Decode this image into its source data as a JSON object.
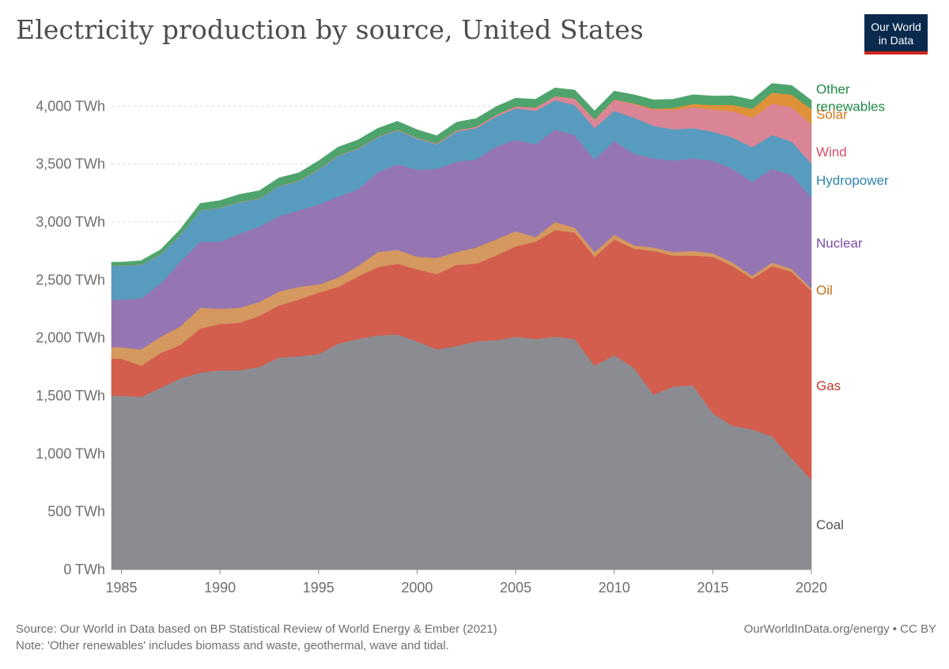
{
  "header": {
    "title": "Electricity production by source, United States",
    "logo_line1": "Our World",
    "logo_line2": "in Data"
  },
  "footer": {
    "source": "Source: Our World in Data based on BP Statistical Review of World Energy & Ember (2021)",
    "note": "Note: 'Other renewables' includes biomass and waste, geothermal, wave and tidal.",
    "credit": "OurWorldInData.org/energy • CC BY"
  },
  "colors": {
    "coal": "#8b8c91",
    "gas": "#d45e4e",
    "oil": "#d5985e",
    "nuclear": "#9676b2",
    "hydropower": "#579cbe",
    "wind": "#d98595",
    "solar": "#df9138",
    "other_renewables": "#4fa46d",
    "logo_bg": "#0a2a4d",
    "logo_bar": "#ce261e"
  },
  "chart_data": {
    "type": "area",
    "stacked": true,
    "title": "Electricity production by source, United States",
    "ylim": [
      0,
      4200
    ],
    "y_ticks": [
      0,
      500,
      1000,
      1500,
      2000,
      2500,
      3000,
      3500,
      4000
    ],
    "y_tick_labels": [
      "0 TWh",
      "500 TWh",
      "1,000 TWh",
      "1,500 TWh",
      "2,000 TWh",
      "2,500 TWh",
      "3,000 TWh",
      "3,500 TWh",
      "4,000 TWh"
    ],
    "x_ticks": [
      1985,
      1990,
      1995,
      2000,
      2005,
      2010,
      2015,
      2020
    ],
    "x_tick_labels": [
      "1985",
      "1990",
      "1995",
      "2000",
      "2005",
      "2010",
      "2015",
      "2020"
    ],
    "grid": true,
    "legend": "right, inline labels",
    "x": [
      1985,
      1986,
      1987,
      1988,
      1989,
      1990,
      1991,
      1992,
      1993,
      1994,
      1995,
      1996,
      1997,
      1998,
      1999,
      2000,
      2001,
      2002,
      2003,
      2004,
      2005,
      2006,
      2007,
      2008,
      2009,
      2010,
      2011,
      2012,
      2013,
      2014,
      2015,
      2016,
      2017,
      2018,
      2019,
      2020
    ],
    "series": [
      {
        "name": "Coal",
        "key": "coal",
        "values": [
          1500,
          1490,
          1570,
          1650,
          1700,
          1720,
          1720,
          1750,
          1830,
          1840,
          1860,
          1950,
          1990,
          2020,
          2030,
          1970,
          1900,
          1930,
          1970,
          1980,
          2010,
          1990,
          2010,
          1990,
          1760,
          1850,
          1740,
          1510,
          1580,
          1590,
          1350,
          1240,
          1210,
          1150,
          960,
          775
        ]
      },
      {
        "name": "Gas",
        "key": "gas",
        "values": [
          320,
          270,
          300,
          290,
          380,
          400,
          410,
          440,
          450,
          490,
          530,
          490,
          540,
          590,
          610,
          620,
          650,
          700,
          670,
          730,
          780,
          840,
          920,
          920,
          940,
          1000,
          1030,
          1240,
          1130,
          1120,
          1350,
          1380,
          1300,
          1470,
          1610,
          1630
        ]
      },
      {
        "name": "Oil",
        "key": "oil",
        "values": [
          100,
          140,
          140,
          160,
          180,
          130,
          130,
          120,
          120,
          110,
          70,
          80,
          90,
          130,
          120,
          110,
          140,
          110,
          140,
          140,
          130,
          40,
          70,
          40,
          40,
          40,
          30,
          30,
          30,
          40,
          30,
          30,
          25,
          30,
          25,
          20
        ]
      },
      {
        "name": "Nuclear",
        "key": "nuclear",
        "values": [
          410,
          440,
          460,
          560,
          570,
          580,
          640,
          650,
          650,
          660,
          690,
          700,
          660,
          690,
          740,
          750,
          770,
          780,
          760,
          800,
          790,
          800,
          800,
          800,
          800,
          810,
          790,
          770,
          790,
          800,
          800,
          810,
          810,
          810,
          810,
          790
        ]
      },
      {
        "name": "Hydropower",
        "key": "hydropower",
        "values": [
          290,
          290,
          250,
          230,
          270,
          290,
          270,
          240,
          260,
          250,
          300,
          350,
          350,
          300,
          290,
          270,
          210,
          260,
          270,
          260,
          270,
          290,
          250,
          260,
          270,
          260,
          310,
          280,
          270,
          260,
          250,
          270,
          300,
          290,
          290,
          290
        ]
      },
      {
        "name": "Wind",
        "key": "wind",
        "values": [
          3,
          3,
          3,
          3,
          3,
          3,
          3,
          3,
          3,
          4,
          4,
          4,
          4,
          4,
          5,
          6,
          7,
          10,
          12,
          14,
          18,
          27,
          35,
          55,
          74,
          95,
          120,
          140,
          168,
          182,
          190,
          227,
          254,
          272,
          298,
          338
        ]
      },
      {
        "name": "Solar",
        "key": "solar",
        "values": [
          0,
          0,
          0,
          0,
          0,
          0,
          0,
          0,
          0,
          0,
          1,
          1,
          1,
          1,
          1,
          1,
          1,
          1,
          1,
          1,
          1,
          1,
          1,
          2,
          2,
          3,
          5,
          9,
          16,
          28,
          39,
          55,
          77,
          94,
          107,
          132
        ]
      },
      {
        "name": "Other renewables",
        "key": "other_renewables",
        "values": [
          30,
          33,
          38,
          45,
          57,
          62,
          65,
          67,
          68,
          70,
          72,
          72,
          73,
          73,
          73,
          70,
          67,
          70,
          70,
          70,
          70,
          71,
          71,
          72,
          72,
          72,
          73,
          75,
          76,
          78,
          78,
          77,
          78,
          80,
          78,
          75
        ]
      }
    ],
    "series_labels": [
      {
        "key": "other_renewables",
        "lines": [
          "Other",
          "renewables"
        ]
      },
      {
        "key": "solar",
        "lines": [
          "Solar"
        ]
      },
      {
        "key": "wind",
        "lines": [
          "Wind"
        ]
      },
      {
        "key": "hydropower",
        "lines": [
          "Hydropower"
        ]
      },
      {
        "key": "nuclear",
        "lines": [
          "Nuclear"
        ]
      },
      {
        "key": "oil",
        "lines": [
          "Oil"
        ]
      },
      {
        "key": "gas",
        "lines": [
          "Gas"
        ]
      },
      {
        "key": "coal",
        "lines": [
          "Coal"
        ]
      }
    ]
  }
}
